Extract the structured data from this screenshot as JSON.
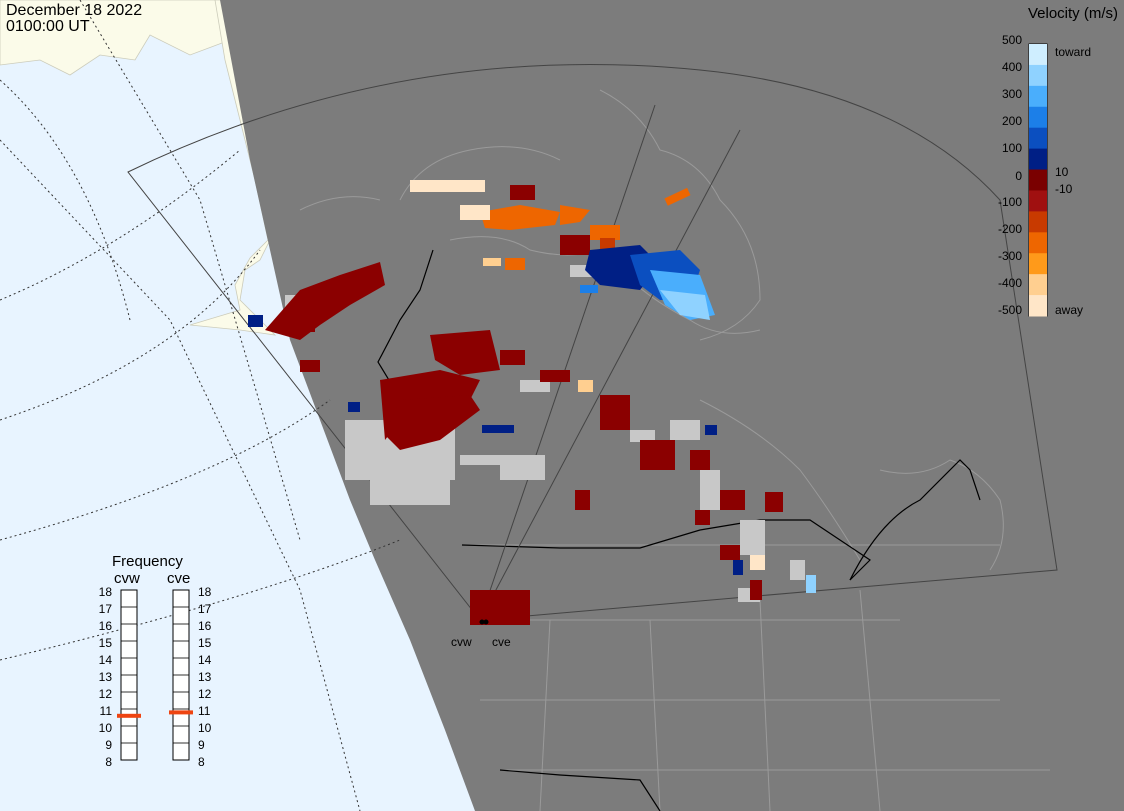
{
  "header": {
    "date": "December 18 2022",
    "time": "0100:00 UT"
  },
  "velocity_scale": {
    "title": "Velocity (m/s)",
    "ticks": [
      "500",
      "400",
      "300",
      "200",
      "100",
      "10",
      "0",
      "-10",
      "-100",
      "-200",
      "-300",
      "-400",
      "-500"
    ],
    "toward_label": "toward",
    "away_label": "away",
    "colors": [
      "#cfeeff",
      "#8fd2ff",
      "#4aaefc",
      "#1c7fe8",
      "#0b4fc0",
      "#001f85",
      "#7a0000",
      "#a01010",
      "#c83a00",
      "#ee6600",
      "#ff9a1a",
      "#ffcf90",
      "#ffe6c8"
    ]
  },
  "frequency": {
    "title": "Frequency",
    "radars": [
      {
        "name": "cvw",
        "value_mhz": 10.6
      },
      {
        "name": "cve",
        "value_mhz": 10.8
      }
    ],
    "ticks": [
      "18",
      "17",
      "16",
      "15",
      "14",
      "13",
      "12",
      "11",
      "10",
      "9",
      "8"
    ]
  },
  "radars": [
    {
      "name": "cvw"
    },
    {
      "name": "cve"
    }
  ],
  "colors": {
    "land": "#7c7c7c",
    "ocean": "#e8f4ff",
    "night_land": "#fbfbe9",
    "ground_scatter": "#c8c8c8",
    "red_orange_marker": "#ee4411"
  }
}
